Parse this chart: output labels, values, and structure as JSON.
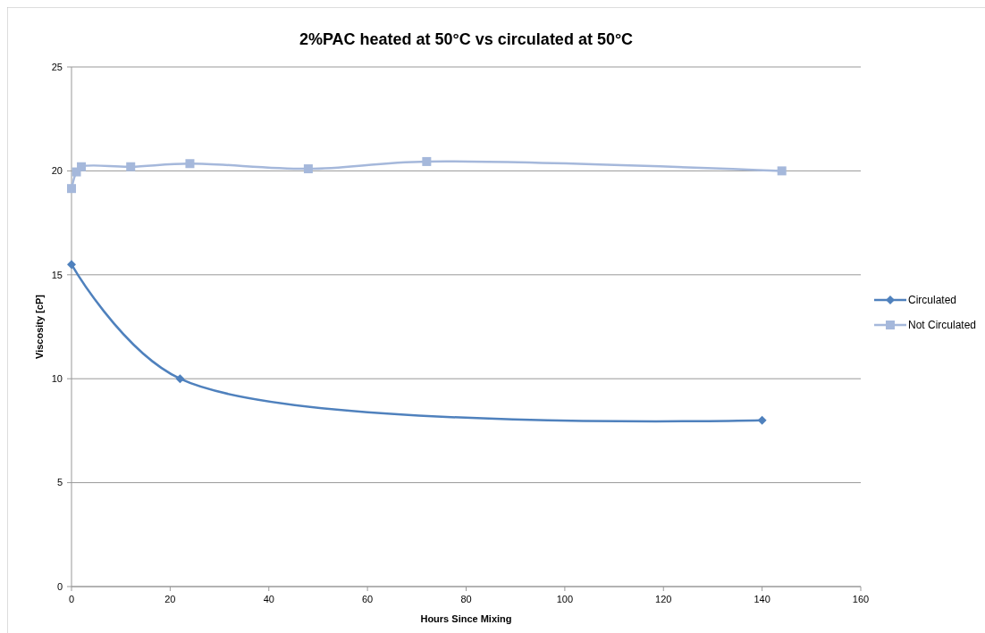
{
  "chart_data": {
    "type": "line",
    "title": "2%PAC heated at 50°C vs circulated at 50°C",
    "xlabel": "Hours Since Mixing",
    "ylabel": "Viscosity [cP]",
    "xlim": [
      0,
      160
    ],
    "xticks": [
      0,
      20,
      40,
      60,
      80,
      100,
      120,
      140,
      160
    ],
    "ylim": [
      0,
      25
    ],
    "yticks": [
      0,
      5,
      10,
      15,
      20,
      25
    ],
    "grid": "y",
    "legend": "right",
    "series": [
      {
        "name": "Circulated",
        "color": "#4f81bd",
        "marker": "diamond",
        "x": [
          0,
          22,
          140
        ],
        "values": [
          15.5,
          10.0,
          8.0
        ]
      },
      {
        "name": "Not Circulated",
        "color": "#a5b8db",
        "marker": "square",
        "x": [
          0,
          1,
          2,
          12,
          24,
          48,
          72,
          144
        ],
        "values": [
          19.15,
          19.95,
          20.2,
          20.2,
          20.35,
          20.1,
          20.45,
          20.0
        ]
      }
    ]
  }
}
